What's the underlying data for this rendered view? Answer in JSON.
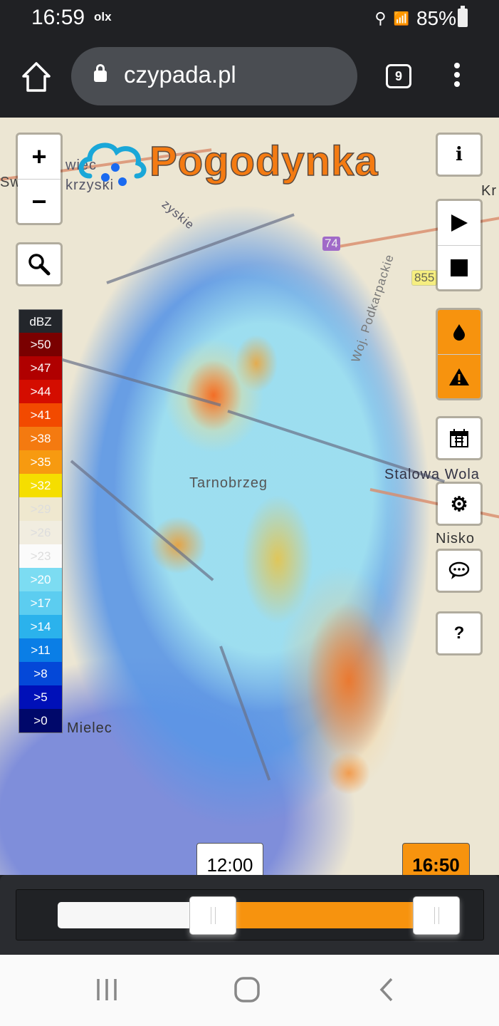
{
  "status_bar": {
    "time": "16:59",
    "notification": "olx",
    "battery": "85%",
    "icons": [
      "location-icon",
      "wifi-icon",
      "signal-icon",
      "battery-icon"
    ]
  },
  "browser": {
    "url": "czypada.pl",
    "tab_count": "9"
  },
  "map": {
    "logo": "Pogodynka",
    "labels": {
      "city1": "Tarnobrzeg",
      "city2": "Stalowa Wola",
      "city3": "Nisko",
      "city4": "Mielec",
      "city5": "Kr",
      "region": "Woj. Podkarpackie",
      "frag1": "Sw",
      "frag2": "wiec",
      "frag3": "krzyski",
      "frag4": "zyskie"
    },
    "road_shields": [
      "74",
      "855"
    ],
    "zoom_in": "+",
    "zoom_out": "−",
    "help": "?"
  },
  "legend": {
    "title": "dBZ",
    "items": [
      {
        "label": ">50",
        "color": "#7a0000"
      },
      {
        "label": ">47",
        "color": "#b00000"
      },
      {
        "label": ">44",
        "color": "#d40d00"
      },
      {
        "label": ">41",
        "color": "#f24a00"
      },
      {
        "label": ">38",
        "color": "#f47a10"
      },
      {
        "label": ">35",
        "color": "#f79a10"
      },
      {
        "label": ">32",
        "color": "#f5de00"
      },
      {
        "label": ">29",
        "color": "#efe8cf"
      },
      {
        "label": ">26",
        "color": "#f1ede0"
      },
      {
        "label": ">23",
        "color": "#fbfbfb"
      },
      {
        "label": ">20",
        "color": "#7cdcf2"
      },
      {
        "label": ">17",
        "color": "#5ccdf0"
      },
      {
        "label": ">14",
        "color": "#2bb2ec"
      },
      {
        "label": ">11",
        "color": "#0a7ee6"
      },
      {
        "label": ">8",
        "color": "#0448d8"
      },
      {
        "label": ">5",
        "color": "#0010b8"
      },
      {
        "label": ">0",
        "color": "#00086a"
      }
    ]
  },
  "timeline": {
    "start": "12:00",
    "end": "16:50",
    "range_fraction": [
      0.37,
      1.0
    ],
    "accent": "#f7930e"
  }
}
